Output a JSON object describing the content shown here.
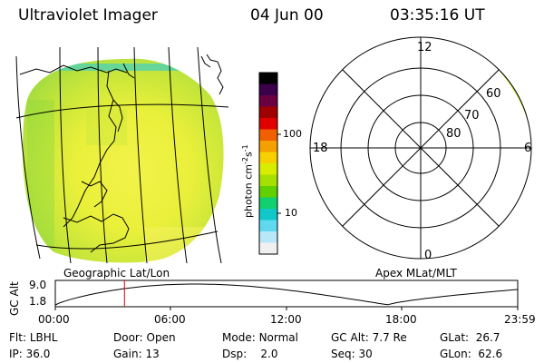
{
  "header": {
    "title": "Ultraviolet Imager",
    "date": "04 Jun 00",
    "time": "03:35:16 UT"
  },
  "geo_map": {
    "label": "Geographic Lat/Lon"
  },
  "colorbar": {
    "unit_label_prefix": "photon cm",
    "unit_exp1": "-2",
    "unit_s": "s",
    "unit_exp2": "-1",
    "tick_100": "100",
    "tick_10": "10",
    "colors": [
      "#000000",
      "#3a004a",
      "#6a0040",
      "#a00000",
      "#e00000",
      "#f06000",
      "#f4a000",
      "#f6d000",
      "#d8ec00",
      "#a6e000",
      "#60d000",
      "#10d070",
      "#10c8c8",
      "#60d8f0",
      "#b8e8f8",
      "#f0f0f0"
    ]
  },
  "polar": {
    "label": "Apex MLat/MLT",
    "mlt_top": "12",
    "mlt_left": "18",
    "mlt_right": "6",
    "mlt_bottom": "0",
    "lat_60": "60",
    "lat_70": "70",
    "lat_80": "80"
  },
  "altitude_plot": {
    "axis_label": "GC Alt",
    "y_max": "9.0",
    "y_min": "1.8",
    "x_ticks": [
      "00:00",
      "06:00",
      "12:00",
      "18:00",
      "23:59"
    ],
    "current_marker_hours": 3.59,
    "curve_color": "#000000",
    "marker_color": "#dd0000"
  },
  "status": {
    "filter_label": "Flt:",
    "filter_value": "LBHL",
    "door_label": "Door:",
    "door_value": "Open",
    "mode_label": "Mode:",
    "mode_value": "Normal",
    "gcalt_label": "GC Alt:",
    "gcalt_value": "7.7 Re",
    "glat_label": "GLat:",
    "glat_value": "26.7",
    "ip_label": "IP:",
    "ip_value": "36.0",
    "gain_label": "Gain:",
    "gain_value": "13",
    "dsp_label": "Dsp:",
    "dsp_value": "2.0",
    "seq_label": "Seq:",
    "seq_value": "30",
    "glon_label": "GLon:",
    "glon_value": "62.6"
  }
}
